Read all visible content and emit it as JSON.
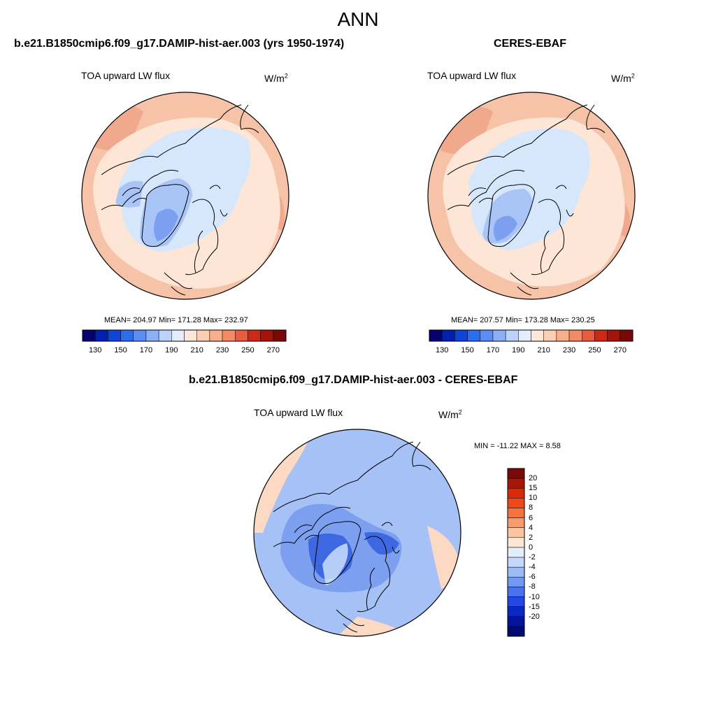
{
  "figure": {
    "title": "ANN"
  },
  "panels": [
    {
      "id": "model",
      "title": "b.e21.B1850cmip6.f09_g17.DAMIP-hist-aer.003 (yrs 1950-1974)",
      "left_label": "TOA upward LW flux",
      "units": "W/m",
      "units_sup": "2",
      "stats": "MEAN= 204.97  Min= 171.28  Max= 232.97"
    },
    {
      "id": "obs",
      "title": "CERES-EBAF",
      "left_label": "TOA upward LW flux",
      "units": "W/m",
      "units_sup": "2",
      "stats": "MEAN= 207.57  Min= 173.28  Max= 230.25"
    },
    {
      "id": "diff",
      "title": "b.e21.B1850cmip6.f09_g17.DAMIP-hist-aer.003 - CERES-EBAF",
      "left_label": "TOA upward LW flux",
      "units": "W/m",
      "units_sup": "2",
      "stats": "MIN = -11.22 MAX =   8.58"
    }
  ],
  "colorbar_main": {
    "colors": [
      "#08006e",
      "#0020b0",
      "#1045d8",
      "#2a6ef0",
      "#5a8ef5",
      "#8cb0f8",
      "#bcd2f8",
      "#e2eefb",
      "#fde8d8",
      "#fccfb4",
      "#f8af8c",
      "#f28a64",
      "#ea5a3c",
      "#cc2a12",
      "#a4120a",
      "#7a0806"
    ],
    "ticks": [
      "130",
      "150",
      "170",
      "190",
      "210",
      "230",
      "250",
      "270"
    ]
  },
  "colorbar_diff": {
    "colors": [
      "#7a0806",
      "#a81608",
      "#d82a08",
      "#f04818",
      "#f8703c",
      "#fa9a6c",
      "#fcc4a0",
      "#fde6d4",
      "#e4eefa",
      "#c4d8fa",
      "#9cbcf6",
      "#7498f2",
      "#4a72ee",
      "#2448e6",
      "#0c28c4",
      "#04149a",
      "#020a70"
    ],
    "ticks": [
      "20",
      "15",
      "10",
      "8",
      "6",
      "4",
      "2",
      "0",
      "-2",
      "-4",
      "-6",
      "-8",
      "-10",
      "-15",
      "-20"
    ]
  },
  "colors": {
    "ocean_warm": "#f6c3a8",
    "land_pale": "#fde6d6",
    "ice_pale": "#d6e6fb",
    "ice_mid": "#a9c4f6",
    "ice_deep": "#7d9ff0",
    "diff_base": "#a6c1f5",
    "diff_mid": "#7d9ff0",
    "diff_deep": "#3e67e2",
    "diff_warm": "#fbd9c2"
  }
}
